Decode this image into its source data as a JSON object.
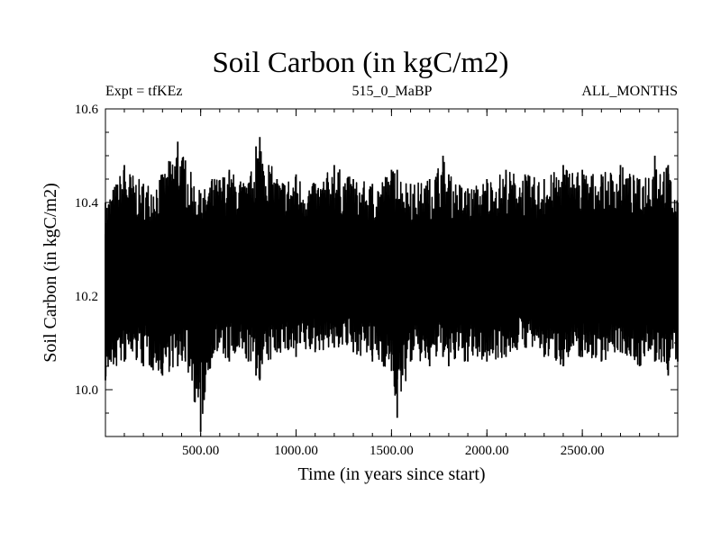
{
  "header": {
    "title": "Soil Carbon (in kgC/m2)",
    "expt": "Expt = tfKEz",
    "period": "515_0_MaBP",
    "months": "ALL_MONTHS"
  },
  "chart_data": {
    "type": "line",
    "title": "Soil Carbon (in kgC/m2)",
    "xlabel": "Time (in years since start)",
    "ylabel": "Soil Carbon (in kgC/m2)",
    "xlim": [
      1,
      3000
    ],
    "ylim": [
      9.9,
      10.6
    ],
    "xticks": [
      500,
      1000,
      1500,
      2000,
      2500
    ],
    "xtick_labels": [
      "500.00",
      "1000.00",
      "1500.00",
      "2000.00",
      "2500.00"
    ],
    "yticks": [
      10.0,
      10.2,
      10.4,
      10.6
    ],
    "ytick_labels": [
      "10.0",
      "10.2",
      "10.4",
      "10.6"
    ],
    "grid": false,
    "series": [
      {
        "color": "#000000",
        "mean": 10.25,
        "typical_range": [
          10.05,
          10.45
        ],
        "x": [
          1,
          100,
          200,
          300,
          380,
          420,
          500,
          560,
          650,
          750,
          790,
          810,
          900,
          1000,
          1100,
          1200,
          1300,
          1400,
          1500,
          1530,
          1600,
          1700,
          1770,
          1800,
          1900,
          2000,
          2100,
          2200,
          2300,
          2400,
          2500,
          2600,
          2700,
          2800,
          2880,
          2950,
          3000
        ],
        "high": [
          10.4,
          10.48,
          10.44,
          10.46,
          10.53,
          10.49,
          10.42,
          10.45,
          10.47,
          10.44,
          10.52,
          10.54,
          10.45,
          10.46,
          10.44,
          10.48,
          10.45,
          10.44,
          10.47,
          10.47,
          10.44,
          10.45,
          10.5,
          10.46,
          10.43,
          10.45,
          10.47,
          10.46,
          10.45,
          10.48,
          10.47,
          10.46,
          10.48,
          10.45,
          10.5,
          10.48,
          10.4
        ],
        "low": [
          10.02,
          10.06,
          10.05,
          10.03,
          10.05,
          10.06,
          9.91,
          10.07,
          10.06,
          10.06,
          10.03,
          10.02,
          10.08,
          10.07,
          10.08,
          10.09,
          10.08,
          10.06,
          10.04,
          9.94,
          10.06,
          10.05,
          10.07,
          10.05,
          10.06,
          10.06,
          10.07,
          10.09,
          10.07,
          10.05,
          10.07,
          10.06,
          10.08,
          10.05,
          10.06,
          10.03,
          10.06
        ]
      }
    ]
  }
}
